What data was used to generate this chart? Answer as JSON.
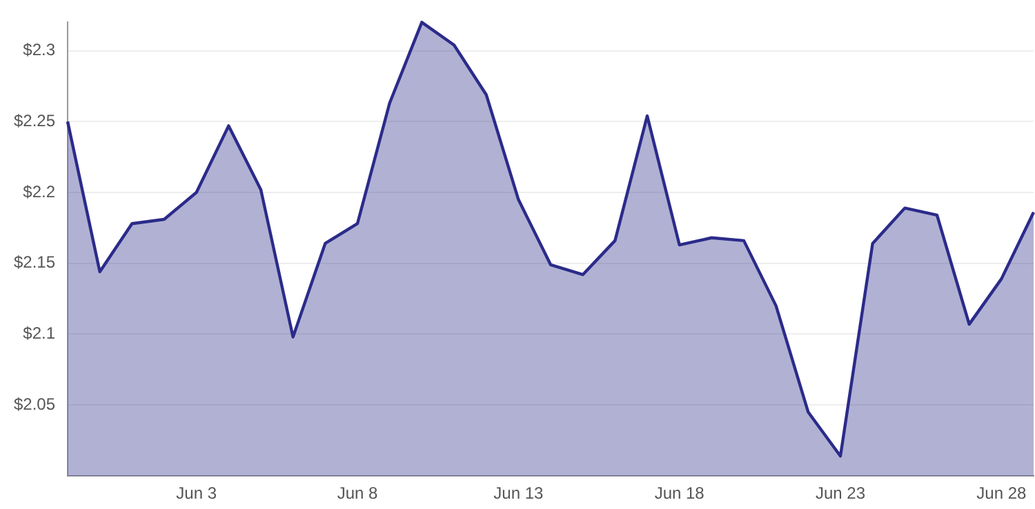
{
  "chart_data": {
    "type": "area",
    "x": [
      "--05-30",
      "--05-31",
      "--06-01",
      "--06-02",
      "--06-03",
      "--06-04",
      "--06-05",
      "--06-06",
      "--06-07",
      "--06-08",
      "--06-09",
      "--06-10",
      "--06-11",
      "--06-12",
      "--06-13",
      "--06-14",
      "--06-15",
      "--06-16",
      "--06-17",
      "--06-18",
      "--06-19",
      "--06-20",
      "--06-21",
      "--06-22",
      "--06-23",
      "--06-24",
      "--06-25",
      "--06-26",
      "--06-27",
      "--06-28",
      "--06-29"
    ],
    "series": [
      {
        "color": "#2b2b8a",
        "values": [
          2.25,
          2.144,
          2.178,
          2.181,
          2.2,
          2.247,
          2.202,
          2.098,
          2.164,
          2.178,
          2.263,
          2.32,
          2.304,
          2.269,
          2.195,
          2.149,
          2.142,
          2.166,
          2.254,
          2.163,
          2.168,
          2.166,
          2.12,
          2.045,
          2.014,
          2.164,
          2.189,
          2.184,
          2.107,
          2.139,
          2.186
        ]
      }
    ],
    "xlim": [
      "--05-30",
      "--06-29"
    ],
    "xticks": [
      {
        "value": "--06-03",
        "label": "Jun 3"
      },
      {
        "value": "--06-08",
        "label": "Jun 8"
      },
      {
        "value": "--06-13",
        "label": "Jun 13"
      },
      {
        "value": "--06-18",
        "label": "Jun 18"
      },
      {
        "value": "--06-23",
        "label": "Jun 23"
      },
      {
        "value": "--06-28",
        "label": "Jun 28"
      }
    ],
    "ylim": [
      2.0,
      2.32
    ],
    "yticks": [
      {
        "value": 2.05,
        "label": "$2.05"
      },
      {
        "value": 2.1,
        "label": "$2.1"
      },
      {
        "value": 2.15,
        "label": "$2.15"
      },
      {
        "value": 2.2,
        "label": "$2.2"
      },
      {
        "value": 2.25,
        "label": "$2.25"
      },
      {
        "value": 2.3,
        "label": "$2.3"
      }
    ],
    "grid": "y",
    "legend": false,
    "marker": "none"
  }
}
